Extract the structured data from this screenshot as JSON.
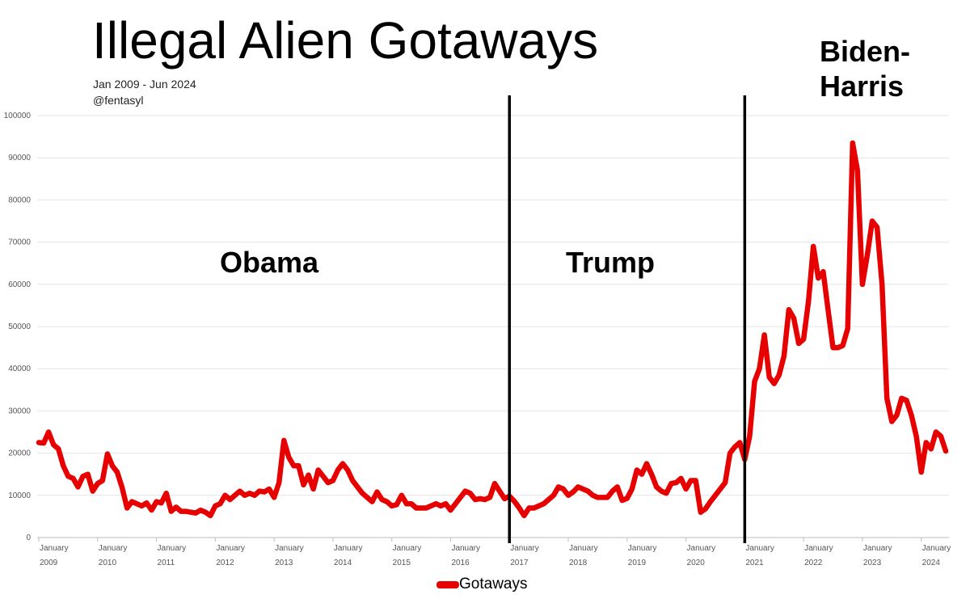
{
  "chart_data": {
    "type": "line",
    "title": "Illegal Alien Gotaways",
    "subtitle": "Jan 2009 - Jun 2024",
    "author": "@fentasyl",
    "series": [
      {
        "name": "Gotaways",
        "color": "#e60000",
        "values": [
          22500,
          22400,
          25000,
          22000,
          21000,
          17000,
          14500,
          14000,
          12000,
          14500,
          15000,
          11000,
          12800,
          13500,
          19800,
          17000,
          15500,
          11800,
          7000,
          8500,
          8000,
          7500,
          8200,
          6500,
          8500,
          8200,
          10500,
          6200,
          7200,
          6200,
          6200,
          6000,
          5800,
          6500,
          6000,
          5200,
          7500,
          8000,
          10000,
          9000,
          10000,
          11000,
          10000,
          10500,
          10000,
          11000,
          10800,
          11500,
          9500,
          13000,
          23000,
          19000,
          17000,
          17000,
          12500,
          14800,
          11500,
          16000,
          14500,
          13000,
          13500,
          16000,
          17500,
          16000,
          13500,
          12000,
          10500,
          9500,
          8500,
          10800,
          9000,
          8500,
          7500,
          7800,
          10000,
          8000,
          8000,
          7000,
          7000,
          7000,
          7500,
          8000,
          7500,
          8000,
          6500,
          8000,
          9500,
          11000,
          10500,
          9000,
          9200,
          9000,
          9500,
          12800,
          11000,
          9200,
          9800,
          8600,
          7000,
          5200,
          7000,
          7000,
          7500,
          8000,
          9000,
          10000,
          12000,
          11500,
          10000,
          10800,
          12000,
          11500,
          11000,
          10000,
          9500,
          9500,
          9500,
          11000,
          12000,
          8800,
          9300,
          11500,
          16000,
          15000,
          17500,
          15000,
          12000,
          11000,
          10500,
          12800,
          13000,
          14000,
          11500,
          13500,
          13500,
          6000,
          6800,
          8500,
          10000,
          11500,
          13000,
          20000,
          21500,
          22500,
          18500,
          24000,
          37000,
          40000,
          48000,
          38000,
          36500,
          38500,
          43000,
          54000,
          52000,
          46000,
          47000,
          56000,
          69000,
          61500,
          63000,
          54000,
          45000,
          45000,
          45500,
          49500,
          93500,
          87000,
          60000,
          67000,
          75000,
          73500,
          60000,
          33000,
          27500,
          29000,
          33000,
          32500,
          29000,
          24000,
          15500,
          22500,
          21000,
          25000,
          24000,
          20500
        ]
      }
    ],
    "x_start": "2009-01",
    "x_end": "2024-06",
    "x_ticks": [
      {
        "top": "January",
        "bottom": "2009"
      },
      {
        "top": "January",
        "bottom": "2010"
      },
      {
        "top": "January",
        "bottom": "2011"
      },
      {
        "top": "January",
        "bottom": "2012"
      },
      {
        "top": "January",
        "bottom": "2013"
      },
      {
        "top": "January",
        "bottom": "2014"
      },
      {
        "top": "January",
        "bottom": "2015"
      },
      {
        "top": "January",
        "bottom": "2016"
      },
      {
        "top": "January",
        "bottom": "2017"
      },
      {
        "top": "January",
        "bottom": "2018"
      },
      {
        "top": "January",
        "bottom": "2019"
      },
      {
        "top": "January",
        "bottom": "2020"
      },
      {
        "top": "January",
        "bottom": "2021"
      },
      {
        "top": "January",
        "bottom": "2022"
      },
      {
        "top": "January",
        "bottom": "2023"
      },
      {
        "top": "January",
        "bottom": "2024"
      }
    ],
    "y_ticks": [
      0,
      10000,
      20000,
      30000,
      40000,
      50000,
      60000,
      70000,
      80000,
      90000,
      100000
    ],
    "ylim": [
      0,
      100000
    ],
    "grid": true,
    "legend_position": "bottom",
    "eras": [
      {
        "label": "Obama",
        "start": "2009-01",
        "end": "2017-01"
      },
      {
        "label": "Trump",
        "start": "2017-01",
        "end": "2021-01"
      },
      {
        "label": "Biden-Harris",
        "label_lines": [
          "Biden-",
          "Harris"
        ],
        "start": "2021-01",
        "end": "2024-06"
      }
    ],
    "era_dividers": [
      "2017-01",
      "2021-01"
    ]
  }
}
